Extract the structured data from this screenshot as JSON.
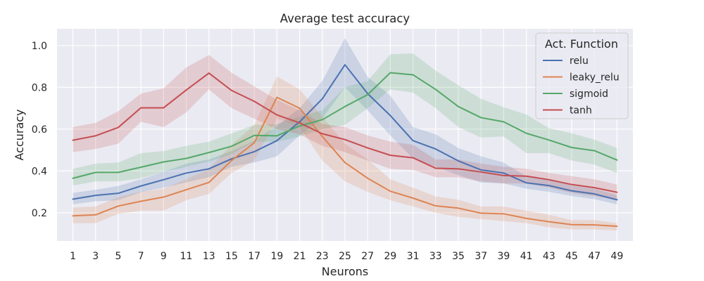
{
  "chart_data": {
    "type": "line",
    "title": "Average test accuracy",
    "xlabel": "Neurons",
    "ylabel": "Accuracy",
    "x": [
      1,
      3,
      5,
      7,
      9,
      11,
      13,
      15,
      17,
      19,
      21,
      23,
      25,
      27,
      29,
      31,
      33,
      35,
      37,
      39,
      41,
      43,
      45,
      47,
      49
    ],
    "xlim": [
      -0.4,
      50.4
    ],
    "ylim": [
      0.065,
      1.08
    ],
    "yticks": [
      0.2,
      0.4,
      0.6,
      0.8,
      1.0
    ],
    "ytick_labels": [
      "0.2",
      "0.4",
      "0.6",
      "0.8",
      "1.0"
    ],
    "grid": true,
    "legend": {
      "title": "Act. Function",
      "placement": "top-right"
    },
    "series": [
      {
        "name": "relu",
        "color": "#4c72b0",
        "values": [
          0.265,
          0.283,
          0.293,
          0.328,
          0.358,
          0.39,
          0.41,
          0.458,
          0.492,
          0.545,
          0.635,
          0.745,
          0.908,
          0.77,
          0.665,
          0.545,
          0.505,
          0.448,
          0.405,
          0.39,
          0.343,
          0.33,
          0.305,
          0.29,
          0.262
        ],
        "lower": [
          0.24,
          0.255,
          0.26,
          0.298,
          0.32,
          0.345,
          0.37,
          0.42,
          0.44,
          0.47,
          0.57,
          0.65,
          0.8,
          0.69,
          0.57,
          0.46,
          0.42,
          0.38,
          0.345,
          0.34,
          0.315,
          0.3,
          0.28,
          0.265,
          0.24
        ],
        "upper": [
          0.295,
          0.31,
          0.328,
          0.36,
          0.395,
          0.435,
          0.455,
          0.495,
          0.545,
          0.615,
          0.7,
          0.83,
          1.035,
          0.85,
          0.76,
          0.61,
          0.575,
          0.51,
          0.47,
          0.44,
          0.373,
          0.36,
          0.33,
          0.315,
          0.285
        ]
      },
      {
        "name": "leaky_relu",
        "color": "#dd8452",
        "values": [
          0.185,
          0.19,
          0.232,
          0.255,
          0.275,
          0.31,
          0.345,
          0.45,
          0.535,
          0.752,
          0.7,
          0.565,
          0.44,
          0.365,
          0.303,
          0.27,
          0.233,
          0.222,
          0.198,
          0.195,
          0.173,
          0.157,
          0.143,
          0.142,
          0.135
        ],
        "lower": [
          0.15,
          0.15,
          0.195,
          0.21,
          0.21,
          0.26,
          0.29,
          0.39,
          0.45,
          0.65,
          0.61,
          0.45,
          0.35,
          0.3,
          0.26,
          0.23,
          0.2,
          0.18,
          0.17,
          0.16,
          0.15,
          0.13,
          0.12,
          0.12,
          0.115
        ],
        "upper": [
          0.225,
          0.23,
          0.275,
          0.3,
          0.315,
          0.36,
          0.41,
          0.525,
          0.62,
          0.852,
          0.79,
          0.66,
          0.53,
          0.455,
          0.36,
          0.32,
          0.278,
          0.262,
          0.23,
          0.23,
          0.21,
          0.19,
          0.165,
          0.165,
          0.15
        ]
      },
      {
        "name": "sigmoid",
        "color": "#55a868",
        "values": [
          0.365,
          0.393,
          0.393,
          0.418,
          0.443,
          0.46,
          0.488,
          0.518,
          0.57,
          0.568,
          0.615,
          0.645,
          0.708,
          0.765,
          0.87,
          0.86,
          0.79,
          0.708,
          0.655,
          0.635,
          0.58,
          0.548,
          0.512,
          0.497,
          0.452
        ],
        "lower": [
          0.33,
          0.35,
          0.35,
          0.365,
          0.395,
          0.42,
          0.445,
          0.48,
          0.54,
          0.54,
          0.565,
          0.6,
          0.62,
          0.7,
          0.79,
          0.775,
          0.7,
          0.61,
          0.56,
          0.565,
          0.485,
          0.485,
          0.45,
          0.43,
          0.39
        ],
        "upper": [
          0.41,
          0.435,
          0.44,
          0.485,
          0.495,
          0.52,
          0.54,
          0.58,
          0.62,
          0.625,
          0.66,
          0.69,
          0.8,
          0.83,
          0.958,
          0.962,
          0.88,
          0.81,
          0.745,
          0.705,
          0.67,
          0.605,
          0.58,
          0.55,
          0.51
        ]
      },
      {
        "name": "tanh",
        "color": "#c44e52",
        "values": [
          0.547,
          0.568,
          0.608,
          0.702,
          0.702,
          0.787,
          0.868,
          0.785,
          0.733,
          0.668,
          0.63,
          0.578,
          0.55,
          0.51,
          0.475,
          0.463,
          0.413,
          0.41,
          0.395,
          0.378,
          0.375,
          0.358,
          0.335,
          0.32,
          0.298
        ],
        "lower": [
          0.49,
          0.505,
          0.53,
          0.635,
          0.61,
          0.68,
          0.79,
          0.7,
          0.65,
          0.6,
          0.575,
          0.52,
          0.49,
          0.45,
          0.41,
          0.405,
          0.37,
          0.37,
          0.35,
          0.34,
          0.34,
          0.32,
          0.295,
          0.28,
          0.26
        ],
        "upper": [
          0.61,
          0.63,
          0.685,
          0.77,
          0.795,
          0.895,
          0.955,
          0.87,
          0.805,
          0.74,
          0.69,
          0.625,
          0.61,
          0.57,
          0.54,
          0.525,
          0.455,
          0.455,
          0.435,
          0.42,
          0.41,
          0.39,
          0.375,
          0.36,
          0.335
        ]
      }
    ]
  }
}
